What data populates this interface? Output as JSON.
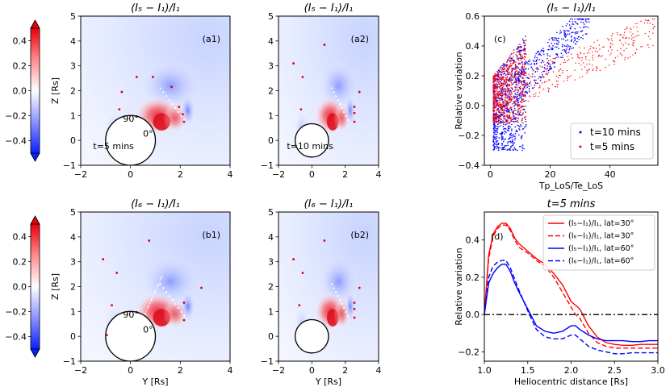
{
  "colorbars": [
    {
      "ticks": [
        "0.4",
        "0.2",
        "0.0",
        "−0.2",
        "−0.4"
      ],
      "tick_values": [
        0.4,
        0.2,
        0.0,
        -0.2,
        -0.4
      ],
      "range": [
        -0.5,
        0.5
      ],
      "colors": {
        "min": "#0a1fff",
        "mid": "#ffffff",
        "max": "#e8000b"
      }
    },
    {
      "ticks": [
        "0.4",
        "0.2",
        "0.0",
        "−0.2",
        "−0.4"
      ],
      "tick_values": [
        0.4,
        0.2,
        0.0,
        -0.2,
        -0.4
      ],
      "range": [
        -0.5,
        0.5
      ],
      "colors": {
        "min": "#0a1fff",
        "mid": "#ffffff",
        "max": "#e8000b"
      }
    }
  ],
  "chart_data": [
    {
      "id": "a1",
      "type": "heatmap",
      "title": "(I₅ − I₁)/I₁",
      "panel_label": "(a1)",
      "xlabel": "",
      "ylabel": "Z [Rs]",
      "xlim": [
        -2,
        4
      ],
      "ylim": [
        -1,
        5
      ],
      "xticks": [
        "−2",
        "0",
        "2",
        "4"
      ],
      "xtick_values": [
        -2,
        0,
        2,
        4
      ],
      "yticks": [
        "5",
        "4",
        "3",
        "2",
        "1",
        "0",
        "−1"
      ],
      "ytick_values": [
        5,
        4,
        3,
        2,
        1,
        0,
        -1
      ],
      "annotations": [
        "90°",
        "0°",
        "t=5 mins"
      ],
      "red_markers": [
        [
          0.25,
          2.55
        ],
        [
          0.9,
          2.55
        ],
        [
          1.65,
          2.15
        ],
        [
          1.95,
          1.35
        ],
        [
          2.1,
          1.05
        ],
        [
          2.15,
          0.75
        ],
        [
          -0.35,
          1.95
        ],
        [
          -0.45,
          1.25
        ]
      ]
    },
    {
      "id": "a2",
      "type": "heatmap",
      "title": "(I₅ − I₁)/I₁",
      "panel_label": "(a2)",
      "xlabel": "",
      "ylabel": "",
      "xlim": [
        -2,
        4
      ],
      "ylim": [
        -1,
        5
      ],
      "xticks": [
        "−2",
        "0",
        "2",
        "4"
      ],
      "xtick_values": [
        -2,
        0,
        2,
        4
      ],
      "yticks": [
        "5",
        "4",
        "3",
        "2",
        "1",
        "0",
        "−1"
      ],
      "ytick_values": [
        5,
        4,
        3,
        2,
        1,
        0,
        -1
      ],
      "annotations": [
        "t=10 mins"
      ],
      "red_markers": [
        [
          0.75,
          3.85
        ],
        [
          -1.1,
          3.1
        ],
        [
          -0.55,
          2.55
        ],
        [
          2.85,
          1.95
        ],
        [
          2.55,
          1.35
        ],
        [
          2.55,
          1.1
        ],
        [
          2.55,
          0.75
        ],
        [
          -0.65,
          1.25
        ]
      ]
    },
    {
      "id": "c",
      "type": "scatter",
      "title": "(I₅ − I₁)/I₁",
      "panel_label": "(c)",
      "xlabel": "Tp_LoS/Te_LoS",
      "ylabel": "Relative variation",
      "xlim": [
        -2,
        56
      ],
      "ylim": [
        -0.4,
        0.6
      ],
      "xticks": [
        "0",
        "20",
        "40"
      ],
      "xtick_values": [
        0,
        20,
        40
      ],
      "yticks": [
        "0.6",
        "0.4",
        "0.2",
        "0.0",
        "−0.2",
        "−0.4"
      ],
      "ytick_values": [
        0.6,
        0.4,
        0.2,
        0.0,
        -0.2,
        -0.4
      ],
      "legend_position": "lower-right",
      "series": [
        {
          "name": "t=10 mins",
          "color": "#0000ff",
          "x_range": [
            1,
            33
          ],
          "y_range": [
            -0.3,
            0.58
          ]
        },
        {
          "name": "t=5 mins",
          "color": "#ff0000",
          "x_range": [
            1,
            55
          ],
          "y_range": [
            -0.12,
            0.58
          ]
        }
      ]
    },
    {
      "id": "b1",
      "type": "heatmap",
      "title": "(I₆ − I₁)/I₁",
      "panel_label": "(b1)",
      "xlabel": "Y [Rs]",
      "ylabel": "Z [Rs]",
      "xlim": [
        -2,
        4
      ],
      "ylim": [
        -1,
        5
      ],
      "xticks": [
        "−2",
        "0",
        "2",
        "4"
      ],
      "xtick_values": [
        -2,
        0,
        2,
        4
      ],
      "yticks": [
        "5",
        "4",
        "3",
        "2",
        "1",
        "0",
        "−1"
      ],
      "ytick_values": [
        5,
        4,
        3,
        2,
        1,
        0,
        -1
      ],
      "annotations": [
        "90°",
        "0°"
      ],
      "red_markers": [
        [
          0.75,
          3.85
        ],
        [
          -1.1,
          3.1
        ],
        [
          -0.55,
          2.55
        ],
        [
          2.85,
          1.95
        ],
        [
          2.15,
          1.35
        ],
        [
          2.15,
          0.65
        ],
        [
          -0.75,
          1.25
        ],
        [
          -0.95,
          0.05
        ]
      ]
    },
    {
      "id": "b2",
      "type": "heatmap",
      "title": "(I₆ − I₁)/I₁",
      "panel_label": "(b2)",
      "xlabel": "Y [Rs]",
      "ylabel": "",
      "xlim": [
        -2,
        4
      ],
      "ylim": [
        -1,
        5
      ],
      "xticks": [
        "−2",
        "0",
        "2",
        "4"
      ],
      "xtick_values": [
        -2,
        0,
        2,
        4
      ],
      "yticks": [
        "5",
        "4",
        "3",
        "2",
        "1",
        "0",
        "−1"
      ],
      "ytick_values": [
        5,
        4,
        3,
        2,
        1,
        0,
        -1
      ],
      "annotations": [],
      "red_markers": [
        [
          0.75,
          3.85
        ],
        [
          -1.1,
          3.1
        ],
        [
          -0.55,
          2.55
        ],
        [
          2.85,
          1.95
        ],
        [
          2.55,
          1.35
        ],
        [
          2.55,
          1.1
        ],
        [
          2.55,
          0.75
        ],
        [
          -0.75,
          1.25
        ]
      ]
    },
    {
      "id": "d",
      "type": "line",
      "title": "t=5 mins",
      "panel_label": "(d)",
      "xlabel": "Heliocentric distance [Rs]",
      "ylabel": "Relative variation",
      "xlim": [
        1.0,
        3.0
      ],
      "ylim": [
        -0.25,
        0.55
      ],
      "xticks": [
        "1.0",
        "1.5",
        "2.0",
        "2.5",
        "3.0"
      ],
      "xtick_values": [
        1.0,
        1.5,
        2.0,
        2.5,
        3.0
      ],
      "yticks": [
        "0.4",
        "0.2",
        "0.0",
        "−0.2"
      ],
      "ytick_values": [
        0.4,
        0.2,
        0.0,
        -0.2
      ],
      "legend_position": "upper-right",
      "x": [
        1.0,
        1.05,
        1.1,
        1.15,
        1.2,
        1.25,
        1.3,
        1.35,
        1.4,
        1.5,
        1.6,
        1.7,
        1.8,
        1.9,
        2.0,
        2.05,
        2.1,
        2.2,
        2.3,
        2.4,
        2.5,
        2.6,
        2.7,
        2.8,
        2.9,
        3.0
      ],
      "series": [
        {
          "name": "(I₅−I₁)/I₁, lat=30°",
          "color": "#ff0000",
          "dash": "solid",
          "values": [
            0.0,
            0.32,
            0.43,
            0.47,
            0.49,
            0.49,
            0.46,
            0.41,
            0.38,
            0.34,
            0.3,
            0.27,
            0.22,
            0.16,
            0.07,
            0.05,
            0.03,
            -0.06,
            -0.12,
            -0.15,
            -0.16,
            -0.165,
            -0.165,
            -0.16,
            -0.16,
            -0.16
          ]
        },
        {
          "name": "(I₆−I₁)/I₁, lat=30°",
          "color": "#ff0000",
          "dash": "dashed",
          "values": [
            0.0,
            0.3,
            0.42,
            0.46,
            0.48,
            0.48,
            0.45,
            0.4,
            0.36,
            0.33,
            0.29,
            0.26,
            0.2,
            0.12,
            0.04,
            0.0,
            -0.02,
            -0.1,
            -0.15,
            -0.17,
            -0.18,
            -0.18,
            -0.18,
            -0.18,
            -0.18,
            -0.18
          ]
        },
        {
          "name": "(I₅−I₁)/I₁, lat=60°",
          "color": "#0000ff",
          "dash": "solid",
          "values": [
            0.0,
            0.17,
            0.22,
            0.25,
            0.27,
            0.27,
            0.23,
            0.17,
            0.12,
            0.03,
            -0.06,
            -0.09,
            -0.1,
            -0.09,
            -0.06,
            -0.06,
            -0.08,
            -0.11,
            -0.13,
            -0.14,
            -0.14,
            -0.14,
            -0.145,
            -0.145,
            -0.14,
            -0.14
          ]
        },
        {
          "name": "(I₆−I₁)/I₁, lat=60°",
          "color": "#0000ff",
          "dash": "dashed",
          "values": [
            0.0,
            0.2,
            0.26,
            0.28,
            0.29,
            0.29,
            0.25,
            0.19,
            0.13,
            0.02,
            -0.08,
            -0.12,
            -0.13,
            -0.13,
            -0.11,
            -0.11,
            -0.13,
            -0.17,
            -0.19,
            -0.2,
            -0.21,
            -0.21,
            -0.205,
            -0.205,
            -0.205,
            -0.205
          ]
        },
        {
          "name": "",
          "color": "#000000",
          "dash": "dashdot",
          "values": [
            0,
            0,
            0,
            0,
            0,
            0,
            0,
            0,
            0,
            0,
            0,
            0,
            0,
            0,
            0,
            0,
            0,
            0,
            0,
            0,
            0,
            0,
            0,
            0,
            0,
            0
          ]
        }
      ]
    }
  ]
}
